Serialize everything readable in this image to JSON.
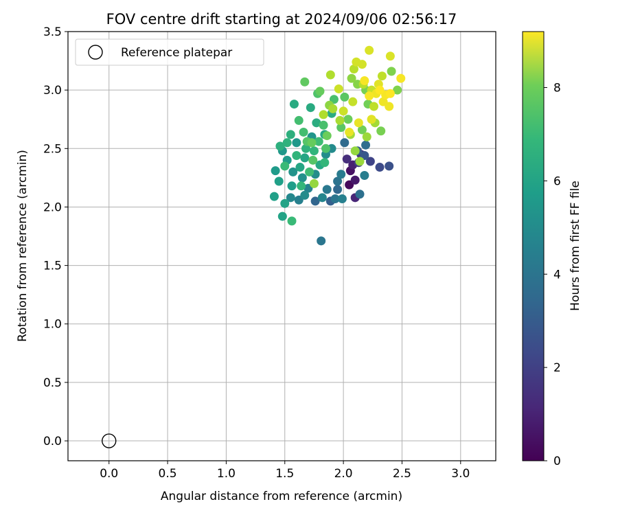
{
  "chart_data": {
    "type": "scatter",
    "title": "FOV centre drift starting at 2024/09/06 02:56:17",
    "xlabel": "Angular distance from reference (arcmin)",
    "ylabel": "Rotation from reference (arcmin)",
    "xlim": [
      -0.35,
      3.3
    ],
    "ylim": [
      -0.17,
      3.5
    ],
    "xticks": [
      "0.0",
      "0.5",
      "1.0",
      "1.5",
      "2.0",
      "2.5",
      "3.0"
    ],
    "yticks": [
      "0.0",
      "0.5",
      "1.0",
      "1.5",
      "2.0",
      "2.5",
      "3.0",
      "3.5"
    ],
    "grid": true,
    "legend": {
      "location": "upper-left",
      "entries": [
        "Reference platepar"
      ]
    },
    "reference_point": {
      "x": 0.0,
      "y": 0.0
    },
    "colorbar": {
      "label": "Hours from first FF file",
      "range": [
        0,
        9.2
      ],
      "ticks": [
        "0",
        "2",
        "4",
        "6",
        "8"
      ],
      "colormap": "viridis"
    },
    "points": [
      {
        "x": 2.05,
        "y": 2.19,
        "h": 0.2
      },
      {
        "x": 2.06,
        "y": 2.31,
        "h": 0.4
      },
      {
        "x": 2.1,
        "y": 2.23,
        "h": 0.6
      },
      {
        "x": 2.08,
        "y": 2.36,
        "h": 0.8
      },
      {
        "x": 2.1,
        "y": 2.08,
        "h": 1.0
      },
      {
        "x": 2.03,
        "y": 2.41,
        "h": 1.2
      },
      {
        "x": 2.15,
        "y": 2.45,
        "h": 1.4
      },
      {
        "x": 2.13,
        "y": 2.38,
        "h": 1.6
      },
      {
        "x": 2.23,
        "y": 2.39,
        "h": 1.9
      },
      {
        "x": 2.31,
        "y": 2.34,
        "h": 2.1
      },
      {
        "x": 2.39,
        "y": 2.35,
        "h": 2.3
      },
      {
        "x": 2.18,
        "y": 2.44,
        "h": 2.5
      },
      {
        "x": 2.12,
        "y": 2.48,
        "h": 2.7
      },
      {
        "x": 1.89,
        "y": 2.05,
        "h": 2.8
      },
      {
        "x": 1.76,
        "y": 2.05,
        "h": 3.0
      },
      {
        "x": 1.95,
        "y": 2.15,
        "h": 3.1
      },
      {
        "x": 2.01,
        "y": 2.55,
        "h": 3.2
      },
      {
        "x": 2.19,
        "y": 2.53,
        "h": 3.3
      },
      {
        "x": 2.14,
        "y": 2.11,
        "h": 3.4
      },
      {
        "x": 1.95,
        "y": 2.22,
        "h": 3.5
      },
      {
        "x": 1.93,
        "y": 2.07,
        "h": 3.6
      },
      {
        "x": 1.81,
        "y": 1.71,
        "h": 3.6
      },
      {
        "x": 1.86,
        "y": 2.15,
        "h": 3.7
      },
      {
        "x": 1.98,
        "y": 2.28,
        "h": 3.8
      },
      {
        "x": 2.18,
        "y": 2.27,
        "h": 3.9
      },
      {
        "x": 1.99,
        "y": 2.07,
        "h": 4.0
      },
      {
        "x": 1.62,
        "y": 2.06,
        "h": 4.0
      },
      {
        "x": 1.7,
        "y": 2.16,
        "h": 4.1
      },
      {
        "x": 1.82,
        "y": 2.08,
        "h": 4.2
      },
      {
        "x": 1.55,
        "y": 2.08,
        "h": 4.3
      },
      {
        "x": 1.67,
        "y": 2.1,
        "h": 4.4
      },
      {
        "x": 1.9,
        "y": 2.5,
        "h": 4.4
      },
      {
        "x": 1.85,
        "y": 2.45,
        "h": 4.5
      },
      {
        "x": 1.76,
        "y": 2.28,
        "h": 4.5
      },
      {
        "x": 1.65,
        "y": 2.25,
        "h": 4.6
      },
      {
        "x": 1.57,
        "y": 2.3,
        "h": 4.7
      },
      {
        "x": 1.73,
        "y": 2.6,
        "h": 4.8
      },
      {
        "x": 1.6,
        "y": 2.55,
        "h": 4.9
      },
      {
        "x": 1.48,
        "y": 2.48,
        "h": 4.9
      },
      {
        "x": 1.52,
        "y": 2.4,
        "h": 5.0
      },
      {
        "x": 1.42,
        "y": 2.31,
        "h": 5.0
      },
      {
        "x": 1.56,
        "y": 2.18,
        "h": 5.1
      },
      {
        "x": 1.45,
        "y": 2.22,
        "h": 5.2
      },
      {
        "x": 1.41,
        "y": 2.09,
        "h": 5.2
      },
      {
        "x": 1.5,
        "y": 2.03,
        "h": 5.3
      },
      {
        "x": 1.48,
        "y": 1.92,
        "h": 5.3
      },
      {
        "x": 1.63,
        "y": 2.34,
        "h": 5.4
      },
      {
        "x": 1.67,
        "y": 2.42,
        "h": 5.4
      },
      {
        "x": 1.8,
        "y": 2.36,
        "h": 5.5
      },
      {
        "x": 1.84,
        "y": 2.62,
        "h": 5.5
      },
      {
        "x": 1.72,
        "y": 2.85,
        "h": 5.6
      },
      {
        "x": 1.58,
        "y": 2.88,
        "h": 5.6
      },
      {
        "x": 1.77,
        "y": 2.72,
        "h": 5.7
      },
      {
        "x": 1.9,
        "y": 2.8,
        "h": 5.7
      },
      {
        "x": 1.55,
        "y": 2.62,
        "h": 5.8
      },
      {
        "x": 1.46,
        "y": 2.52,
        "h": 5.8
      },
      {
        "x": 1.52,
        "y": 2.55,
        "h": 5.9
      },
      {
        "x": 1.68,
        "y": 2.5,
        "h": 5.9
      },
      {
        "x": 1.6,
        "y": 2.44,
        "h": 6.0
      },
      {
        "x": 1.75,
        "y": 2.48,
        "h": 6.0
      },
      {
        "x": 1.84,
        "y": 2.38,
        "h": 6.1
      },
      {
        "x": 1.64,
        "y": 2.18,
        "h": 6.1
      },
      {
        "x": 1.56,
        "y": 1.88,
        "h": 6.2
      },
      {
        "x": 1.5,
        "y": 2.35,
        "h": 6.2
      },
      {
        "x": 1.71,
        "y": 2.3,
        "h": 6.3
      },
      {
        "x": 1.79,
        "y": 2.56,
        "h": 6.3
      },
      {
        "x": 1.66,
        "y": 2.64,
        "h": 6.4
      },
      {
        "x": 1.62,
        "y": 2.74,
        "h": 6.4
      },
      {
        "x": 1.83,
        "y": 2.7,
        "h": 6.5
      },
      {
        "x": 1.92,
        "y": 2.92,
        "h": 6.5
      },
      {
        "x": 1.78,
        "y": 2.97,
        "h": 6.6
      },
      {
        "x": 1.85,
        "y": 2.5,
        "h": 6.6
      },
      {
        "x": 1.69,
        "y": 2.56,
        "h": 6.7
      },
      {
        "x": 1.74,
        "y": 2.4,
        "h": 6.7
      },
      {
        "x": 1.98,
        "y": 2.68,
        "h": 6.8
      },
      {
        "x": 2.01,
        "y": 2.94,
        "h": 6.8
      },
      {
        "x": 1.67,
        "y": 3.07,
        "h": 6.9
      },
      {
        "x": 1.8,
        "y": 2.99,
        "h": 7.0
      },
      {
        "x": 1.73,
        "y": 2.55,
        "h": 7.0
      },
      {
        "x": 1.86,
        "y": 2.61,
        "h": 7.1
      },
      {
        "x": 2.04,
        "y": 2.75,
        "h": 7.1
      },
      {
        "x": 2.16,
        "y": 2.66,
        "h": 7.2
      },
      {
        "x": 2.21,
        "y": 2.88,
        "h": 7.2
      },
      {
        "x": 2.19,
        "y": 3.0,
        "h": 7.3
      },
      {
        "x": 2.32,
        "y": 2.65,
        "h": 7.3
      },
      {
        "x": 2.46,
        "y": 3.0,
        "h": 7.4
      },
      {
        "x": 2.41,
        "y": 3.16,
        "h": 7.4
      },
      {
        "x": 2.27,
        "y": 2.98,
        "h": 7.5
      },
      {
        "x": 2.12,
        "y": 3.05,
        "h": 7.5
      },
      {
        "x": 2.07,
        "y": 3.1,
        "h": 7.6
      },
      {
        "x": 1.88,
        "y": 2.87,
        "h": 7.6
      },
      {
        "x": 1.75,
        "y": 2.2,
        "h": 7.7
      },
      {
        "x": 2.1,
        "y": 2.48,
        "h": 7.7
      },
      {
        "x": 2.2,
        "y": 2.6,
        "h": 7.8
      },
      {
        "x": 2.14,
        "y": 2.39,
        "h": 7.8
      },
      {
        "x": 2.27,
        "y": 2.72,
        "h": 7.9
      },
      {
        "x": 2.06,
        "y": 2.62,
        "h": 7.9
      },
      {
        "x": 1.97,
        "y": 2.74,
        "h": 8.0
      },
      {
        "x": 1.91,
        "y": 2.84,
        "h": 8.0
      },
      {
        "x": 1.83,
        "y": 2.79,
        "h": 8.1
      },
      {
        "x": 1.89,
        "y": 3.13,
        "h": 8.1
      },
      {
        "x": 2.09,
        "y": 3.18,
        "h": 8.2
      },
      {
        "x": 2.17,
        "y": 3.05,
        "h": 8.2
      },
      {
        "x": 2.26,
        "y": 2.86,
        "h": 8.3
      },
      {
        "x": 2.33,
        "y": 3.12,
        "h": 8.3
      },
      {
        "x": 2.24,
        "y": 3.0,
        "h": 8.4
      },
      {
        "x": 2.08,
        "y": 2.9,
        "h": 8.4
      },
      {
        "x": 1.96,
        "y": 3.01,
        "h": 8.5
      },
      {
        "x": 2.0,
        "y": 2.82,
        "h": 8.5
      },
      {
        "x": 2.11,
        "y": 3.24,
        "h": 8.6
      },
      {
        "x": 2.16,
        "y": 3.22,
        "h": 8.6
      },
      {
        "x": 2.22,
        "y": 3.34,
        "h": 8.7
      },
      {
        "x": 2.4,
        "y": 3.29,
        "h": 8.7
      },
      {
        "x": 2.3,
        "y": 3.05,
        "h": 8.8
      },
      {
        "x": 2.24,
        "y": 2.75,
        "h": 8.8
      },
      {
        "x": 2.13,
        "y": 2.72,
        "h": 8.9
      },
      {
        "x": 2.05,
        "y": 2.64,
        "h": 8.9
      },
      {
        "x": 2.34,
        "y": 2.9,
        "h": 9.0
      },
      {
        "x": 2.39,
        "y": 2.86,
        "h": 9.0
      },
      {
        "x": 2.28,
        "y": 2.97,
        "h": 9.0
      },
      {
        "x": 2.49,
        "y": 3.1,
        "h": 9.1
      },
      {
        "x": 2.36,
        "y": 2.96,
        "h": 9.1
      },
      {
        "x": 2.18,
        "y": 3.08,
        "h": 9.1
      },
      {
        "x": 2.22,
        "y": 2.95,
        "h": 9.1
      },
      {
        "x": 2.31,
        "y": 3.0,
        "h": 9.2
      },
      {
        "x": 2.4,
        "y": 2.97,
        "h": 9.2
      }
    ]
  }
}
